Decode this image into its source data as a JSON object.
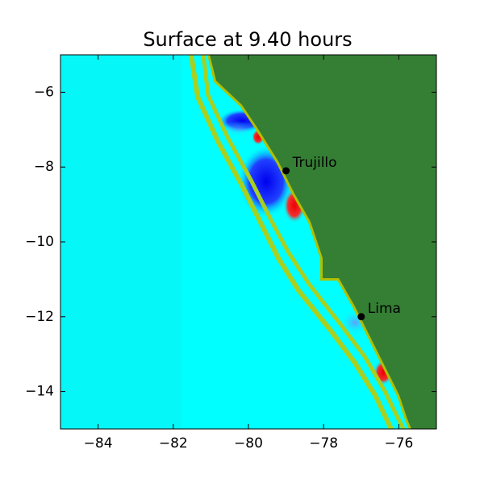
{
  "chart_data": {
    "type": "map",
    "title": "Surface at 9.40 hours",
    "xlim": [
      -85,
      -75
    ],
    "ylim": [
      -15,
      -5
    ],
    "xticks": [
      {
        "value": -84,
        "label": "−84"
      },
      {
        "value": -82,
        "label": "−82"
      },
      {
        "value": -80,
        "label": "−80"
      },
      {
        "value": -78,
        "label": "−78"
      },
      {
        "value": -76,
        "label": "−76"
      }
    ],
    "yticks": [
      {
        "value": -6,
        "label": "−6"
      },
      {
        "value": -8,
        "label": "−8"
      },
      {
        "value": -10,
        "label": "−10"
      },
      {
        "value": -12,
        "label": "−12"
      },
      {
        "value": -14,
        "label": "−14"
      }
    ],
    "points": [
      {
        "label": "Trujillo",
        "x": -79,
        "y": -8.1
      },
      {
        "label": "Lima",
        "x": -77,
        "y": -12
      }
    ],
    "point_color": "#000000"
  }
}
